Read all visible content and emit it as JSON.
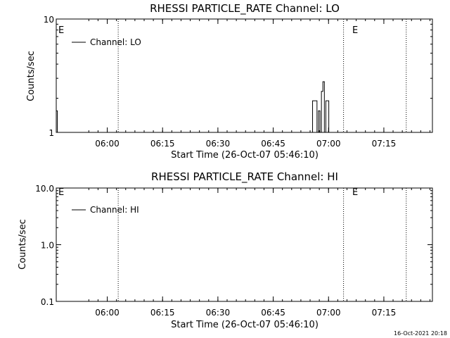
{
  "chart_data": [
    {
      "type": "line",
      "title": "RHESSI PARTICLE_RATE Channel: LO",
      "xlabel": "Start Time (26-Oct-07 05:46:10)",
      "ylabel": "Counts/sec",
      "yscale": "log",
      "ylim": [
        1,
        10
      ],
      "ytick_labels": [
        "1",
        "10"
      ],
      "xlim_minutes_after_start": [
        0,
        102
      ],
      "xtick_labels": [
        "06:00",
        "06:15",
        "06:30",
        "06:45",
        "07:00",
        "07:15"
      ],
      "xtick_minutes_after_start": [
        13.83,
        28.83,
        43.83,
        58.83,
        73.83,
        88.83
      ],
      "legend": "Channel: LO",
      "marker_labels": [
        "E",
        "E"
      ],
      "eclipse_lines_minutes": [
        16.8,
        77.9,
        94.9
      ],
      "series": [
        {
          "name": "Channel: LO",
          "x": [
            0.0,
            0.3,
            0.6,
            68.9,
            69.5,
            70.1,
            70.7,
            71.1,
            71.5,
            71.9,
            72.3,
            72.7,
            73.1,
            73.5,
            73.9,
            74.3,
            74.7
          ],
          "y": [
            1.55,
            1.0,
            1.0,
            1.0,
            1.9,
            1.9,
            1.0,
            1.55,
            1.0,
            2.3,
            2.8,
            1.0,
            1.9,
            1.9,
            1.0,
            1.0,
            1.0
          ]
        }
      ]
    },
    {
      "type": "line",
      "title": "RHESSI PARTICLE_RATE Channel: HI",
      "xlabel": "Start Time (26-Oct-07 05:46:10)",
      "ylabel": "Counts/sec",
      "yscale": "log",
      "ylim": [
        0.1,
        10
      ],
      "ytick_labels": [
        "0.1",
        "1.0",
        "10.0"
      ],
      "xlim_minutes_after_start": [
        0,
        102
      ],
      "xtick_labels": [
        "06:00",
        "06:15",
        "06:30",
        "06:45",
        "07:00",
        "07:15"
      ],
      "xtick_minutes_after_start": [
        13.83,
        28.83,
        43.83,
        58.83,
        73.83,
        88.83
      ],
      "legend": "Channel: HI",
      "marker_labels": [
        "E",
        "E"
      ],
      "eclipse_lines_minutes": [
        16.8,
        77.9,
        94.9
      ],
      "series": [
        {
          "name": "Channel: HI",
          "x": [],
          "y": []
        }
      ]
    }
  ],
  "footer": {
    "timestamp": "16-Oct-2021 20:18"
  }
}
